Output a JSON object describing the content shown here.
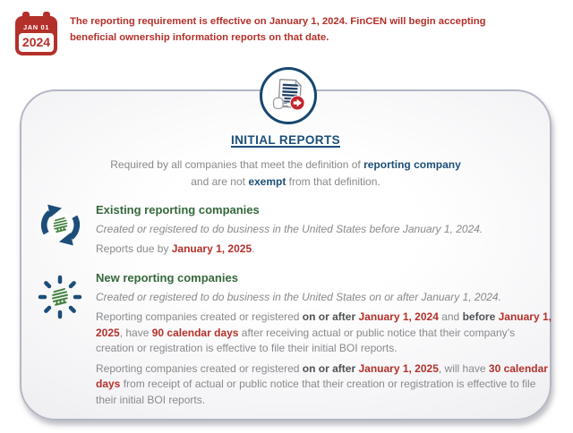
{
  "colors": {
    "red": "#b4302a",
    "navy": "#1d4e79",
    "green": "#35683b",
    "building_green": "#44803f",
    "gray_text": "#87898b",
    "dark_bold": "#4f5153"
  },
  "icons": {
    "calendar": "calendar-icon",
    "document_submit": "document-submit-icon",
    "existing": "cycle-building-icon",
    "new": "sparkle-building-icon"
  },
  "header": {
    "calendar": {
      "month_day": "JAN 01",
      "year": "2024"
    },
    "line1": "The reporting requirement is effective on January 1, 2024. FinCEN will begin accepting",
    "line2": "beneficial ownership information reports on that date."
  },
  "card": {
    "title": "INITIAL REPORTS",
    "intro_line1": [
      {
        "t": "Required by all companies that meet the definition of ",
        "s": "gray"
      },
      {
        "t": "reporting company",
        "s": "blue"
      }
    ],
    "intro_line2": [
      {
        "t": "and are not ",
        "s": "gray"
      },
      {
        "t": "exempt",
        "s": "blue"
      },
      {
        "t": " from that definition.",
        "s": "gray"
      }
    ],
    "existing": {
      "heading": "Existing reporting companies",
      "description": "Created or registered to do business in the United States before January 1, 2024.",
      "due_line": [
        {
          "t": "Reports due by ",
          "s": "gray"
        },
        {
          "t": "January 1, 2025",
          "s": "red"
        },
        {
          "t": ".",
          "s": "gray"
        }
      ]
    },
    "new": {
      "heading": "New reporting companies",
      "description": "Created or registered to do business in the United States on or after January 1, 2024.",
      "para_90_days": [
        {
          "t": "Reporting companies created or registered ",
          "s": "gray"
        },
        {
          "t": "on or after ",
          "s": "dark"
        },
        {
          "t": "January 1, 2024",
          "s": "red"
        },
        {
          "t": " and ",
          "s": "gray"
        },
        {
          "t": "before ",
          "s": "dark"
        },
        {
          "t": "January 1, 2025",
          "s": "red"
        },
        {
          "t": ", have ",
          "s": "gray"
        },
        {
          "t": "90 calendar days",
          "s": "red"
        },
        {
          "t": " after receiving actual or public notice that their company’s creation or registration is effective to file their initial BOI reports.",
          "s": "gray"
        }
      ],
      "para_30_days": [
        {
          "t": "Reporting companies created or registered ",
          "s": "gray"
        },
        {
          "t": "on or after ",
          "s": "dark"
        },
        {
          "t": "January 1, 2025",
          "s": "red"
        },
        {
          "t": ", will have ",
          "s": "gray"
        },
        {
          "t": "30 calendar days",
          "s": "red"
        },
        {
          "t": " from receipt of actual or public notice that their creation or registration is effective to file their initial BOI reports.",
          "s": "gray"
        }
      ]
    }
  }
}
